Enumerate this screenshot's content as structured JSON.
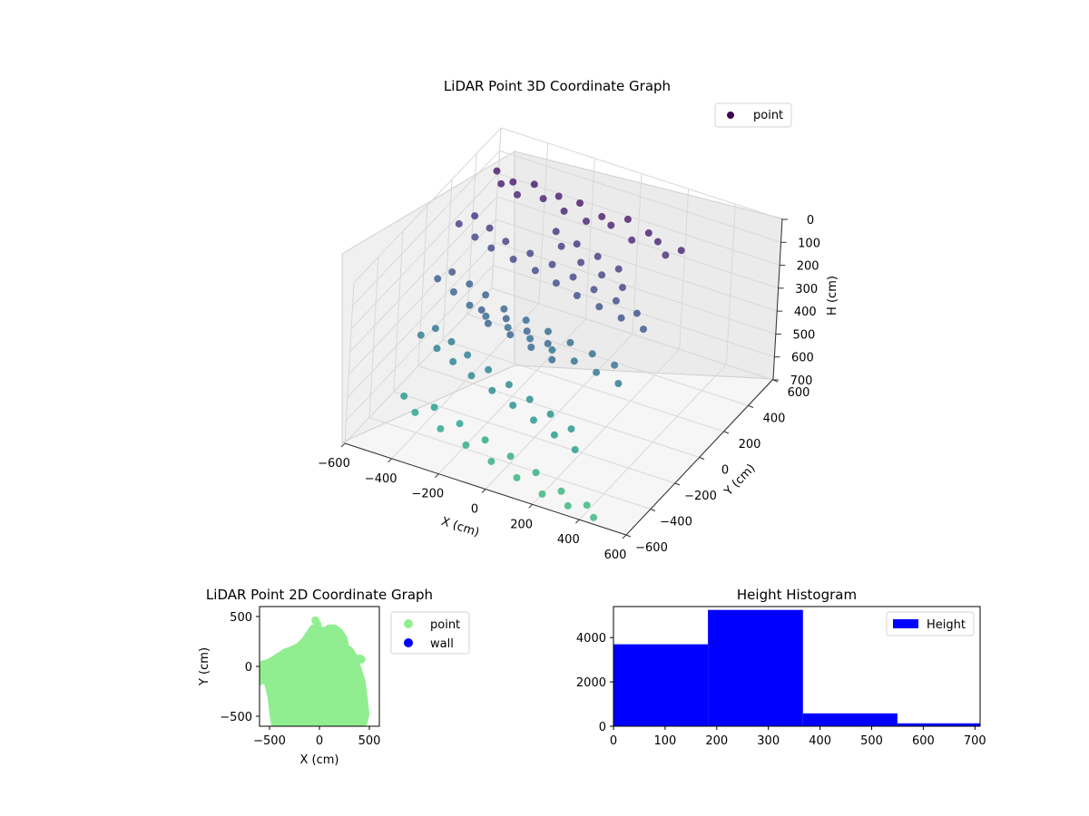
{
  "chart_data": [
    {
      "type": "scatter",
      "projection": "3d",
      "title": "LiDAR Point 3D Coordinate Graph",
      "xlabel": "X (cm)",
      "ylabel": "Y (cm)",
      "zlabel": "H (cm)",
      "xlim": [
        -600,
        600
      ],
      "ylim": [
        -600,
        600
      ],
      "zlim": [
        700,
        0
      ],
      "z_axis_inverted": true,
      "xticks": [
        "−600",
        "−400",
        "−200",
        "0",
        "200",
        "400",
        "600"
      ],
      "yticks": [
        "−600",
        "−400",
        "−200",
        "0",
        "200",
        "400",
        "600"
      ],
      "zticks": [
        "0",
        "100",
        "200",
        "300",
        "400",
        "500",
        "600",
        "700"
      ],
      "legend": [
        "point"
      ],
      "legend_position": "top-right",
      "colormap": "viridis",
      "grid": true,
      "series": [
        {
          "name": "point",
          "points": [
            [
              -520,
              420,
              60
            ],
            [
              -480,
              380,
              80
            ],
            [
              -440,
              400,
              70
            ],
            [
              -400,
              360,
              90
            ],
            [
              -360,
              420,
              65
            ],
            [
              -300,
              380,
              85
            ],
            [
              -250,
              410,
              75
            ],
            [
              -200,
              360,
              95
            ],
            [
              -150,
              390,
              60
            ],
            [
              -100,
              350,
              100
            ],
            [
              -50,
              380,
              80
            ],
            [
              0,
              360,
              90
            ],
            [
              50,
              400,
              70
            ],
            [
              100,
              340,
              110
            ],
            [
              150,
              380,
              85
            ],
            [
              200,
              360,
              95
            ],
            [
              250,
              330,
              120
            ],
            [
              300,
              360,
              100
            ],
            [
              -560,
              200,
              180
            ],
            [
              -520,
              250,
              160
            ],
            [
              -480,
              180,
              200
            ],
            [
              -440,
              220,
              170
            ],
            [
              -400,
              160,
              210
            ],
            [
              -360,
              200,
              190
            ],
            [
              -300,
              150,
              220
            ],
            [
              -250,
              190,
              200
            ],
            [
              -200,
              140,
              230
            ],
            [
              -150,
              180,
              210
            ],
            [
              -100,
              120,
              240
            ],
            [
              -50,
              160,
              220
            ],
            [
              0,
              100,
              250
            ],
            [
              50,
              140,
              230
            ],
            [
              100,
              90,
              260
            ],
            [
              150,
              130,
              240
            ],
            [
              200,
              80,
              270
            ],
            [
              250,
              110,
              250
            ],
            [
              300,
              70,
              280
            ],
            [
              -540,
              0,
              300
            ],
            [
              -500,
              40,
              280
            ],
            [
              -460,
              -20,
              320
            ],
            [
              -420,
              30,
              300
            ],
            [
              -380,
              -40,
              340
            ],
            [
              -340,
              10,
              310
            ],
            [
              -300,
              -60,
              350
            ],
            [
              -250,
              -10,
              330
            ],
            [
              -200,
              -70,
              360
            ],
            [
              -150,
              -20,
              340
            ],
            [
              -100,
              -80,
              370
            ],
            [
              -50,
              -30,
              350
            ],
            [
              0,
              -90,
              380
            ],
            [
              50,
              -40,
              360
            ],
            [
              100,
              -100,
              390
            ],
            [
              150,
              -50,
              370
            ],
            [
              200,
              -110,
              400
            ],
            [
              250,
              -60,
              380
            ],
            [
              300,
              -120,
              410
            ],
            [
              -500,
              -200,
              420
            ],
            [
              -460,
              -160,
              400
            ],
            [
              -420,
              -220,
              440
            ],
            [
              -380,
              -180,
              420
            ],
            [
              -340,
              -240,
              460
            ],
            [
              -300,
              -200,
              440
            ],
            [
              -250,
              -260,
              480
            ],
            [
              -200,
              -220,
              460
            ],
            [
              -150,
              -280,
              500
            ],
            [
              -100,
              -240,
              480
            ],
            [
              -50,
              -300,
              520
            ],
            [
              0,
              -260,
              500
            ],
            [
              50,
              -320,
              540
            ],
            [
              100,
              -280,
              520
            ],
            [
              150,
              -340,
              560
            ],
            [
              200,
              -300,
              540
            ],
            [
              250,
              -360,
              580
            ],
            [
              -460,
              -400,
              560
            ],
            [
              -400,
              -420,
              600
            ],
            [
              -340,
              -380,
              580
            ],
            [
              -280,
              -440,
              620
            ],
            [
              -220,
              -400,
              600
            ],
            [
              -160,
              -460,
              640
            ],
            [
              -100,
              -420,
              620
            ],
            [
              -40,
              -480,
              660
            ],
            [
              20,
              -440,
              640
            ],
            [
              80,
              -500,
              680
            ],
            [
              140,
              -460,
              660
            ],
            [
              200,
              -520,
              700
            ],
            [
              260,
              -480,
              690
            ],
            [
              320,
              -540,
              700
            ],
            [
              380,
              -500,
              700
            ],
            [
              440,
              -560,
              700
            ],
            [
              -200,
              300,
              150
            ],
            [
              -150,
              250,
              170
            ],
            [
              -100,
              280,
              160
            ],
            [
              -50,
              220,
              190
            ],
            [
              0,
              260,
              170
            ],
            [
              50,
              200,
              200
            ],
            [
              100,
              240,
              180
            ],
            [
              150,
              180,
              210
            ],
            [
              -300,
              -100,
              300
            ],
            [
              -250,
              -140,
              320
            ],
            [
              -200,
              -90,
              310
            ],
            [
              -150,
              -150,
              330
            ],
            [
              -100,
              -110,
              320
            ],
            [
              -50,
              -170,
              340
            ],
            [
              0,
              -130,
              330
            ],
            [
              50,
              -190,
              350
            ]
          ]
        }
      ]
    },
    {
      "type": "scatter",
      "title": "LiDAR Point 2D Coordinate Graph",
      "xlabel": "X (cm)",
      "ylabel": "Y (cm)",
      "xlim": [
        -600,
        600
      ],
      "ylim": [
        -600,
        600
      ],
      "xticks": [
        "−500",
        "0",
        "500"
      ],
      "yticks": [
        "−500",
        "0",
        "500"
      ],
      "legend": [
        "point",
        "wall"
      ],
      "legend_position": "outside-right",
      "series": [
        {
          "name": "point",
          "color": "#90ee90",
          "silhouette": [
            [
              -600,
              0
            ],
            [
              -600,
              -150
            ],
            [
              -560,
              -130
            ],
            [
              -520,
              -140
            ],
            [
              -480,
              -300
            ],
            [
              -460,
              -480
            ],
            [
              -440,
              -600
            ],
            [
              -400,
              -600
            ],
            [
              -300,
              -600
            ],
            [
              -200,
              -600
            ],
            [
              -100,
              -600
            ],
            [
              0,
              -600
            ],
            [
              100,
              -600
            ],
            [
              200,
              -600
            ],
            [
              300,
              -600
            ],
            [
              400,
              -600
            ],
            [
              440,
              -560
            ],
            [
              460,
              -480
            ],
            [
              440,
              -300
            ],
            [
              420,
              -150
            ],
            [
              380,
              -20
            ],
            [
              340,
              100
            ],
            [
              300,
              160
            ],
            [
              260,
              180
            ],
            [
              240,
              280
            ],
            [
              200,
              340
            ],
            [
              150,
              380
            ],
            [
              100,
              380
            ],
            [
              60,
              350
            ],
            [
              0,
              360
            ],
            [
              -40,
              360
            ],
            [
              -60,
              380
            ],
            [
              -100,
              320
            ],
            [
              -140,
              260
            ],
            [
              -200,
              200
            ],
            [
              -280,
              160
            ],
            [
              -340,
              140
            ],
            [
              -400,
              100
            ],
            [
              -460,
              60
            ],
            [
              -520,
              30
            ],
            [
              -560,
              20
            ]
          ],
          "outliers": [
            [
              -40,
              460
            ],
            [
              -30,
              400
            ],
            [
              -20,
              420
            ],
            [
              400,
              80
            ],
            [
              420,
              70
            ]
          ]
        },
        {
          "name": "wall",
          "color": "#0000ff",
          "points": []
        }
      ]
    },
    {
      "type": "bar",
      "title": "Height Histogram",
      "xlabel": "",
      "ylabel": "",
      "xlim": [
        0,
        710
      ],
      "ylim": [
        0,
        5400
      ],
      "xticks": [
        "0",
        "100",
        "200",
        "300",
        "400",
        "500",
        "600",
        "700"
      ],
      "yticks": [
        "0",
        "2000",
        "4000"
      ],
      "legend": [
        "Height"
      ],
      "legend_position": "top-right",
      "color": "#0000ff",
      "bins": [
        {
          "start": 0,
          "end": 183,
          "count": 3700
        },
        {
          "start": 183,
          "end": 367,
          "count": 5250
        },
        {
          "start": 367,
          "end": 550,
          "count": 580
        },
        {
          "start": 550,
          "end": 710,
          "count": 130
        }
      ]
    }
  ]
}
